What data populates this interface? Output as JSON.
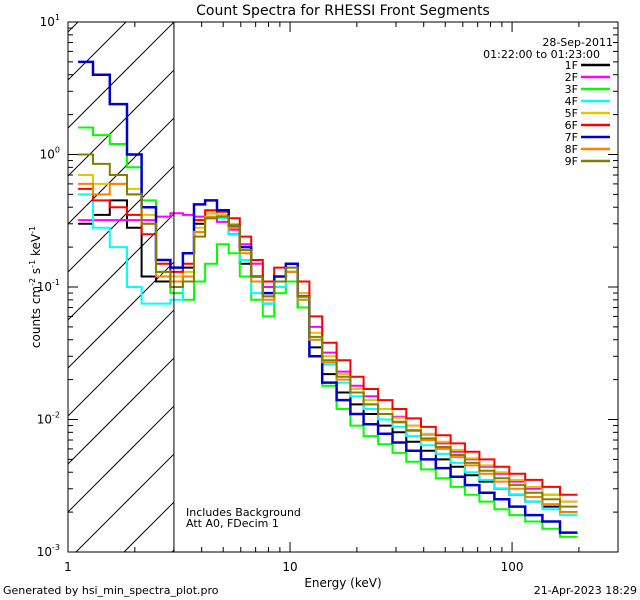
{
  "chart_data": {
    "type": "line",
    "title": "Count Spectra for RHESSI Front Segments",
    "xlabel": "Energy (keV)",
    "ylabel": "counts cm-2 s-1 keV-1",
    "ylabel_parts": {
      "base": "counts cm",
      "e1": "-2",
      "s": " s",
      "e2": "-1",
      "k": " keV",
      "e3": "-1"
    },
    "xscale": "log",
    "yscale": "log",
    "xlim": [
      1,
      300
    ],
    "ylim": [
      0.001,
      10
    ],
    "x_ticks": [
      {
        "value": 1,
        "label": "1"
      },
      {
        "value": 10,
        "label": "10"
      },
      {
        "value": 100,
        "label": "100"
      }
    ],
    "y_ticks": [
      {
        "value": 0.001,
        "base": "10",
        "exp": "-3"
      },
      {
        "value": 0.01,
        "base": "10",
        "exp": "-2"
      },
      {
        "value": 0.1,
        "base": "10",
        "exp": "-1"
      },
      {
        "value": 1,
        "base": "10",
        "exp": "0"
      },
      {
        "value": 10,
        "base": "10",
        "exp": "1"
      }
    ],
    "date": "28-Sep-2011",
    "time_range": "01:22:00 to 01:23:00",
    "hatched_below_keV": 3,
    "annotations": [
      "Includes Background",
      "Att A0, FDecim 1"
    ],
    "legend_position": "top-right",
    "series": [
      {
        "name": "1F",
        "color": "#000000",
        "values": [
          0.3,
          0.35,
          0.45,
          0.28,
          0.12,
          0.11,
          0.1,
          0.14,
          0.3,
          0.36,
          0.34,
          0.25,
          0.15,
          0.12,
          0.075,
          0.11,
          0.15,
          0.07,
          0.035,
          0.022,
          0.016,
          0.013,
          0.011,
          0.009,
          0.008,
          0.0068,
          0.0058,
          0.005,
          0.0044,
          0.0038,
          0.0034,
          0.003,
          0.0027,
          0.0024,
          0.0022,
          0.002
        ]
      },
      {
        "name": "2F",
        "color": "#ff00ff",
        "values": [
          0.32,
          0.32,
          0.32,
          0.32,
          0.32,
          0.34,
          0.36,
          0.35,
          0.34,
          0.33,
          0.31,
          0.27,
          0.21,
          0.15,
          0.1,
          0.12,
          0.13,
          0.09,
          0.05,
          0.032,
          0.023,
          0.018,
          0.015,
          0.012,
          0.0105,
          0.009,
          0.0077,
          0.0066,
          0.0057,
          0.005,
          0.0044,
          0.0039,
          0.0034,
          0.003,
          0.0027,
          0.0024
        ]
      },
      {
        "name": "3F",
        "color": "#00ff00",
        "values": [
          1.6,
          1.4,
          1.2,
          0.8,
          0.45,
          0.13,
          0.09,
          0.08,
          0.11,
          0.15,
          0.21,
          0.18,
          0.12,
          0.08,
          0.06,
          0.09,
          0.11,
          0.07,
          0.03,
          0.018,
          0.012,
          0.009,
          0.0075,
          0.0065,
          0.0056,
          0.0048,
          0.0042,
          0.0036,
          0.0031,
          0.0027,
          0.0024,
          0.0021,
          0.0019,
          0.0017,
          0.0015,
          0.0013
        ]
      },
      {
        "name": "4F",
        "color": "#00ffff",
        "values": [
          0.5,
          0.28,
          0.2,
          0.1,
          0.075,
          0.075,
          0.08,
          0.11,
          0.26,
          0.37,
          0.33,
          0.25,
          0.16,
          0.09,
          0.075,
          0.1,
          0.13,
          0.08,
          0.04,
          0.026,
          0.019,
          0.015,
          0.012,
          0.01,
          0.0088,
          0.0075,
          0.0064,
          0.0055,
          0.0047,
          0.004,
          0.0035,
          0.003,
          0.0027,
          0.0024,
          0.0021,
          0.0019
        ]
      },
      {
        "name": "5F",
        "color": "#e0c800",
        "values": [
          0.7,
          0.6,
          0.6,
          0.55,
          0.35,
          0.15,
          0.12,
          0.13,
          0.28,
          0.36,
          0.35,
          0.3,
          0.19,
          0.12,
          0.085,
          0.12,
          0.14,
          0.09,
          0.045,
          0.03,
          0.022,
          0.017,
          0.014,
          0.012,
          0.0103,
          0.009,
          0.0078,
          0.0068,
          0.0059,
          0.0051,
          0.0045,
          0.004,
          0.0035,
          0.0031,
          0.0027,
          0.0024
        ]
      },
      {
        "name": "6F",
        "color": "#ff0000",
        "values": [
          0.55,
          0.45,
          0.4,
          0.35,
          0.25,
          0.15,
          0.13,
          0.15,
          0.32,
          0.38,
          0.37,
          0.33,
          0.24,
          0.16,
          0.11,
          0.14,
          0.15,
          0.11,
          0.06,
          0.038,
          0.028,
          0.021,
          0.017,
          0.014,
          0.012,
          0.0102,
          0.0088,
          0.0076,
          0.0066,
          0.0057,
          0.005,
          0.0044,
          0.0039,
          0.0035,
          0.0031,
          0.0027
        ]
      },
      {
        "name": "7F",
        "color": "#0000cc",
        "values": [
          5.0,
          4.0,
          2.4,
          1.0,
          0.4,
          0.16,
          0.14,
          0.18,
          0.42,
          0.45,
          0.38,
          0.29,
          0.2,
          0.12,
          0.09,
          0.12,
          0.15,
          0.085,
          0.03,
          0.019,
          0.014,
          0.011,
          0.0092,
          0.0078,
          0.0067,
          0.0058,
          0.005,
          0.0043,
          0.0037,
          0.0032,
          0.0028,
          0.0025,
          0.0022,
          0.0019,
          0.0017,
          0.0014
        ]
      },
      {
        "name": "8F",
        "color": "#ff8000",
        "values": [
          0.6,
          0.5,
          0.6,
          0.5,
          0.3,
          0.12,
          0.11,
          0.12,
          0.26,
          0.34,
          0.34,
          0.28,
          0.18,
          0.11,
          0.08,
          0.11,
          0.13,
          0.08,
          0.04,
          0.027,
          0.02,
          0.016,
          0.013,
          0.011,
          0.0095,
          0.0082,
          0.007,
          0.006,
          0.0052,
          0.0045,
          0.0039,
          0.0034,
          0.003,
          0.0026,
          0.0023,
          0.002
        ]
      },
      {
        "name": "9F",
        "color": "#808000",
        "values": [
          1.0,
          0.85,
          0.7,
          0.5,
          0.3,
          0.13,
          0.1,
          0.11,
          0.24,
          0.33,
          0.34,
          0.29,
          0.19,
          0.12,
          0.085,
          0.11,
          0.14,
          0.085,
          0.042,
          0.028,
          0.021,
          0.016,
          0.013,
          0.011,
          0.0096,
          0.0083,
          0.0072,
          0.0062,
          0.0054,
          0.0047,
          0.0041,
          0.0036,
          0.0032,
          0.0028,
          0.0025,
          0.0022
        ]
      }
    ],
    "x": [
      1.2,
      1.4,
      1.7,
      2.0,
      2.3,
      2.7,
      3.1,
      3.5,
      3.9,
      4.4,
      5.0,
      5.6,
      6.3,
      7.1,
      8.0,
      9.0,
      10.2,
      11.5,
      13.0,
      15.0,
      17.5,
      20.0,
      23.0,
      27.0,
      31.0,
      36.0,
      42.0,
      49.0,
      57.0,
      66.0,
      77.0,
      90.0,
      105.0,
      125.0,
      150.0,
      180.0
    ]
  },
  "footer": {
    "left": "Generated by hsi_min_spectra_plot.pro",
    "right": "21-Apr-2023 18:29"
  }
}
